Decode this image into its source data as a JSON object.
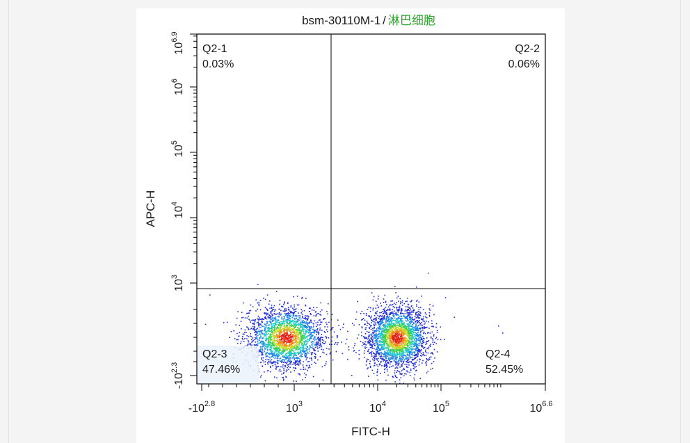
{
  "chart_data": {
    "type": "scatter",
    "title_prefix": "bsm-30110M-1",
    "title_separator": "/",
    "title_gate": "淋巴细胞",
    "xlabel": "FITC-H",
    "ylabel": "APC-H",
    "x_scale": "biexponential",
    "y_scale": "biexponential",
    "xlim_exponents": [
      -2.8,
      6.6
    ],
    "ylim_exponents": [
      -2.3,
      6.9
    ],
    "x_ticks": [
      {
        "base": "-10",
        "exp": "2.8"
      },
      {
        "base": "10",
        "exp": "3"
      },
      {
        "base": "10",
        "exp": "4"
      },
      {
        "base": "10",
        "exp": "5"
      },
      {
        "base": "10",
        "exp": "6.6"
      }
    ],
    "y_ticks": [
      {
        "base": "-10",
        "exp": "2.3"
      },
      {
        "base": "10",
        "exp": "3"
      },
      {
        "base": "10",
        "exp": "4"
      },
      {
        "base": "10",
        "exp": "5"
      },
      {
        "base": "10",
        "exp": "6"
      },
      {
        "base": "10",
        "exp": "6.9"
      }
    ],
    "quadrants": [
      {
        "name": "Q2-1",
        "percent": "0.03%"
      },
      {
        "name": "Q2-2",
        "percent": "0.06%"
      },
      {
        "name": "Q2-3",
        "percent": "47.46%"
      },
      {
        "name": "Q2-4",
        "percent": "52.45%"
      }
    ],
    "populations": [
      {
        "x_center": 500,
        "y_center": 0,
        "share": 0.4746
      },
      {
        "x_center": 20000,
        "y_center": 0,
        "share": 0.5245
      }
    ],
    "density_colors": [
      "#1e2bd6",
      "#1f86e6",
      "#21c7c4",
      "#3ed04a",
      "#c9d62a",
      "#f28c1b",
      "#e3261b"
    ],
    "title_gate_color": "#2aa62a"
  }
}
